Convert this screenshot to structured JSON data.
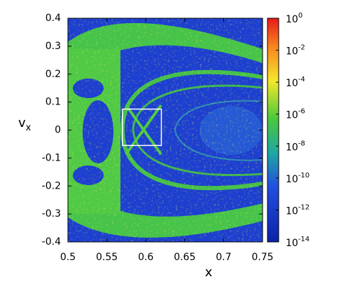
{
  "chart_data": {
    "type": "heatmap",
    "x_label": "x",
    "y_label": "v",
    "y_label_sub": "x",
    "xlim": [
      0.5,
      0.75
    ],
    "xticks": [
      0.5,
      0.55,
      0.6,
      0.65,
      0.7,
      0.75
    ],
    "ylim": [
      -0.4,
      0.4
    ],
    "yticks": [
      0.4,
      0.3,
      0.2,
      0.1,
      0,
      -0.1,
      -0.2,
      -0.3,
      -0.4
    ],
    "colorbar_scale": "log",
    "clim": [
      1e-14,
      1
    ],
    "colorbar_ticks": [
      {
        "value": 1,
        "label": "10",
        "exponent": "0"
      },
      {
        "value": 0.01,
        "label": "10",
        "exponent": "-2"
      },
      {
        "value": 0.0001,
        "label": "10",
        "exponent": "-4"
      },
      {
        "value": 1e-06,
        "label": "10",
        "exponent": "-6"
      },
      {
        "value": 1e-08,
        "label": "10",
        "exponent": "-8"
      },
      {
        "value": 1e-10,
        "label": "10",
        "exponent": "-10"
      },
      {
        "value": 1e-12,
        "label": "10",
        "exponent": "-12"
      },
      {
        "value": 1e-14,
        "label": "10",
        "exponent": "-14"
      }
    ],
    "highlight_box": {
      "xlim": [
        0.57,
        0.62
      ],
      "ylim": [
        -0.055,
        0.075
      ],
      "color": "#ffffff"
    }
  }
}
